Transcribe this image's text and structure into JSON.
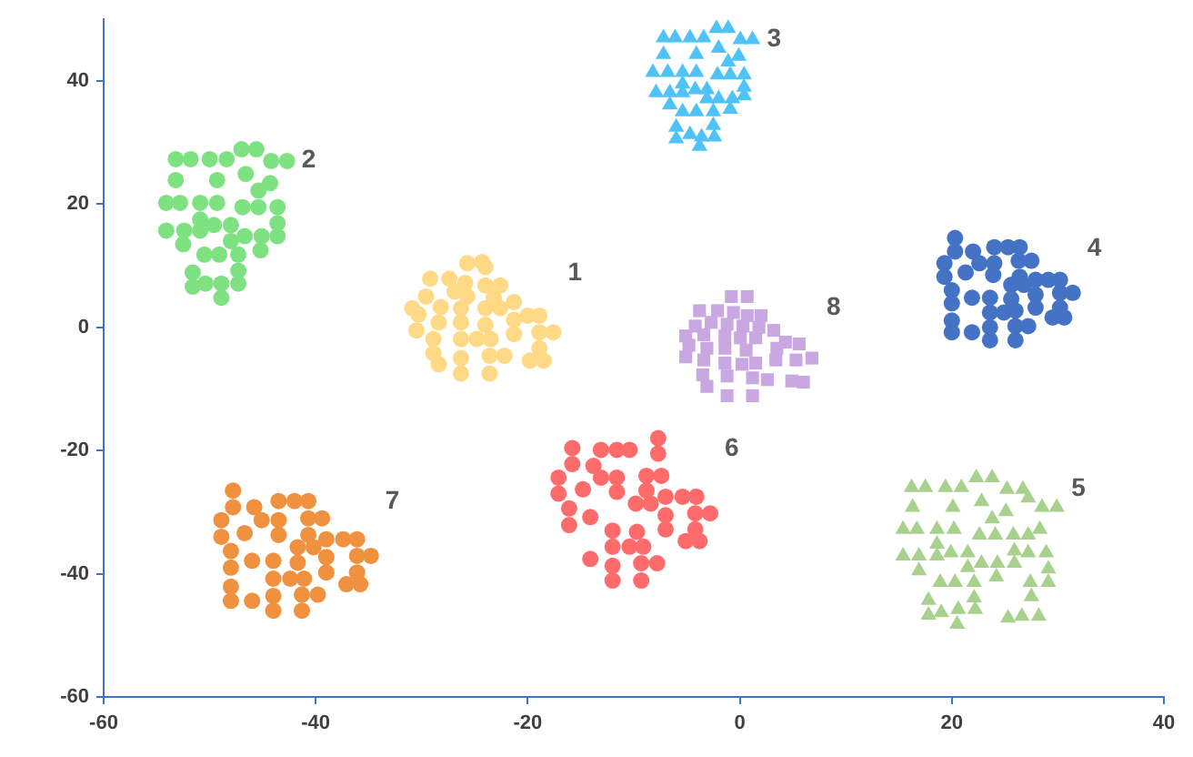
{
  "chart_data": {
    "type": "scatter",
    "xlim": [
      -60,
      40
    ],
    "xticks": [
      -60,
      -40,
      -20,
      0,
      20,
      40
    ],
    "ylim": [
      -60,
      50
    ],
    "yticks": [
      -60,
      -40,
      -20,
      0,
      20,
      40
    ],
    "series": [
      {
        "name": "1",
        "color": "#ffd986",
        "marker": "circle",
        "x": [
          -25.7,
          -24.3,
          -24.0,
          -29.2,
          -27.4,
          -25.9,
          -24.0,
          -22.6,
          -26.9,
          -25.7,
          -23.2,
          -29.6,
          -30.9,
          -28.2,
          -26.3,
          -24.0,
          -22.6,
          -21.3,
          -30.3,
          -28.4,
          -26.3,
          -24.0,
          -21.3,
          -20.0,
          -18.9,
          -30.5,
          -21.3,
          -18.9,
          -17.6,
          -28.9,
          -26.3,
          -24.8,
          -23.5,
          -28.9,
          -26.3,
          -23.6,
          -22.2,
          -18.9,
          -19.8,
          -18.5,
          -28.4,
          -26.3,
          -23.6
        ],
        "values": [
          10.4,
          10.6,
          9.8,
          7.9,
          7.9,
          7.2,
          6.8,
          6.8,
          5.8,
          5.0,
          4.8,
          5.0,
          3.1,
          3.3,
          3.1,
          3.1,
          3.1,
          4.1,
          2.1,
          0.8,
          0.8,
          0.4,
          1.2,
          1.9,
          1.9,
          -0.5,
          -1.1,
          -0.8,
          -0.8,
          -1.9,
          -1.9,
          -1.9,
          -1.9,
          -4.2,
          -5.0,
          -4.6,
          -4.6,
          -3.4,
          -5.4,
          -5.4,
          -6.0,
          -7.5,
          -7.5
        ]
      },
      {
        "name": "2",
        "color": "#7ee282",
        "marker": "circle",
        "x": [
          -53.2,
          -51.8,
          -50.0,
          -48.4,
          -47.0,
          -45.6,
          -44.2,
          -42.7,
          -53.2,
          -49.3,
          -46.6,
          -44.3,
          -45.4,
          -54.1,
          -52.8,
          -50.9,
          -49.3,
          -46.9,
          -45.4,
          -43.6,
          -50.9,
          -54.1,
          -52.4,
          -50.9,
          -49.6,
          -48.0,
          -46.7,
          -45.1,
          -43.6,
          -43.6,
          -48.0,
          -52.5,
          -45.2,
          -50.5,
          -49.1,
          -47.3,
          -51.6,
          -47.3,
          -51.6,
          -50.4,
          -48.9,
          -47.3,
          -48.9
        ],
        "values": [
          27.3,
          27.3,
          27.3,
          27.3,
          28.9,
          28.9,
          27.0,
          27.0,
          23.9,
          23.9,
          24.9,
          23.4,
          22.2,
          20.2,
          20.2,
          20.2,
          20.2,
          19.5,
          19.5,
          19.5,
          17.5,
          15.7,
          15.7,
          15.7,
          16.6,
          16.6,
          14.8,
          14.8,
          14.8,
          16.9,
          14.0,
          13.5,
          12.5,
          11.8,
          11.8,
          11.8,
          8.9,
          9.2,
          6.6,
          7.1,
          7.1,
          7.1,
          4.8
        ]
      },
      {
        "name": "3",
        "color": "#4fc3f7",
        "marker": "triangle",
        "x": [
          -7.2,
          -6.1,
          -4.7,
          -3.4,
          -2.2,
          -1.1,
          0.05,
          1.2,
          -2.0,
          -7.2,
          -4.1,
          -1.1,
          -0.1,
          -8.2,
          -6.8,
          -5.4,
          -4.1,
          -2.1,
          -0.9,
          0.4,
          0.4,
          -5.4,
          -7.9,
          -6.6,
          -5.4,
          -4.2,
          -3.1,
          -2.0,
          -0.7,
          0.4,
          -3.1,
          -6.6,
          -0.9,
          -5.4,
          -4.1,
          -2.5,
          -6.0,
          -4.7,
          -2.5,
          -6.0,
          -3.6,
          -2.4,
          -3.8
        ],
        "values": [
          47.0,
          47.0,
          47.0,
          47.0,
          48.5,
          48.5,
          46.7,
          46.7,
          45.3,
          44.3,
          44.3,
          43.1,
          44.0,
          41.4,
          41.4,
          41.4,
          41.4,
          41.0,
          41.0,
          41.0,
          39.0,
          39.5,
          38.1,
          38.1,
          38.1,
          38.6,
          38.6,
          37.1,
          37.1,
          37.6,
          37.1,
          36.1,
          35.4,
          35.0,
          35.0,
          35.0,
          32.5,
          31.3,
          32.8,
          30.6,
          30.9,
          30.9,
          29.4
        ]
      },
      {
        "name": "4",
        "color": "#4472c4",
        "marker": "circle",
        "x": [
          20.3,
          20.3,
          22.0,
          24.0,
          25.3,
          26.4,
          19.3,
          22.6,
          24.0,
          26.3,
          27.5,
          19.3,
          21.3,
          23.9,
          26.4,
          25.6,
          26.8,
          27.9,
          29.1,
          30.2,
          20.0,
          21.9,
          23.6,
          25.6,
          27.9,
          30.2,
          31.4,
          20.0,
          23.6,
          24.9,
          26.0,
          27.9,
          30.2,
          29.5,
          30.6,
          20.0,
          20.0,
          21.9,
          23.6,
          26.0,
          27.2,
          23.6,
          26.0
        ],
        "values": [
          14.5,
          12.3,
          12.3,
          13.0,
          13.0,
          13.0,
          10.4,
          10.4,
          10.4,
          10.8,
          10.8,
          8.2,
          8.9,
          8.5,
          8.2,
          6.9,
          6.9,
          7.7,
          7.7,
          7.7,
          6.0,
          4.8,
          4.8,
          4.6,
          5.3,
          5.6,
          5.6,
          3.9,
          2.4,
          2.4,
          2.7,
          3.2,
          3.2,
          1.6,
          1.6,
          1.1,
          -0.8,
          -0.8,
          0.0,
          0.2,
          0.2,
          -2.1,
          -2.1
        ]
      },
      {
        "name": "5",
        "color": "#a9d18e",
        "marker": "triangle",
        "x": [
          22.3,
          23.8,
          16.2,
          17.5,
          19.4,
          20.9,
          25.2,
          26.7,
          27.2,
          16.3,
          20.1,
          22.8,
          25.1,
          28.5,
          29.9,
          23.8,
          15.4,
          16.7,
          18.6,
          20.2,
          22.6,
          24.1,
          25.8,
          27.2,
          28.3,
          18.6,
          15.4,
          16.9,
          18.6,
          19.9,
          21.5,
          25.9,
          27.2,
          28.9,
          21.5,
          22.8,
          24.3,
          25.9,
          16.9,
          29.1,
          18.9,
          20.3,
          22.1,
          24.2,
          27.4,
          29.1,
          17.8,
          22.1,
          27.5,
          17.8,
          19.0,
          20.6,
          22.2,
          25.3,
          26.6,
          28.2,
          20.5
        ],
        "values": [
          -24.4,
          -24.4,
          -26.0,
          -26.0,
          -26.0,
          -26.0,
          -26.3,
          -26.3,
          -27.7,
          -29.2,
          -29.2,
          -28.3,
          -29.9,
          -29.2,
          -29.2,
          -31.1,
          -32.8,
          -32.8,
          -32.8,
          -32.8,
          -33.7,
          -33.7,
          -33.7,
          -33.7,
          -32.8,
          -35.2,
          -37.1,
          -37.1,
          -37.1,
          -36.6,
          -36.6,
          -36.3,
          -36.6,
          -36.6,
          -39.0,
          -38.3,
          -38.3,
          -38.3,
          -39.5,
          -39.2,
          -41.4,
          -41.4,
          -41.4,
          -40.5,
          -41.4,
          -41.4,
          -44.3,
          -43.9,
          -43.7,
          -46.7,
          -46.3,
          -45.8,
          -45.8,
          -47.2,
          -46.9,
          -46.9,
          -48.2
        ]
      },
      {
        "name": "6",
        "color": "#ff6b6b",
        "marker": "circle",
        "x": [
          -7.7,
          -15.8,
          -13.1,
          -11.6,
          -10.4,
          -7.7,
          -15.8,
          -13.8,
          -17.1,
          -13.1,
          -11.6,
          -8.8,
          -7.4,
          -17.1,
          -14.8,
          -11.6,
          -8.8,
          -9.8,
          -8.4,
          -7.0,
          -5.4,
          -4.1,
          -16.1,
          -7.0,
          -4.2,
          -2.8,
          -16.1,
          -14.1,
          -12.0,
          -9.7,
          -7.0,
          -4.2,
          -5.1,
          -3.8,
          -12.0,
          -10.4,
          -9.1,
          -14.1,
          -12.0,
          -9.3,
          -7.8,
          -12.0,
          -9.3
        ],
        "values": [
          -18.0,
          -19.6,
          -19.9,
          -19.9,
          -19.9,
          -20.5,
          -22.2,
          -22.5,
          -24.4,
          -24.4,
          -24.4,
          -24.1,
          -24.1,
          -27.0,
          -26.3,
          -26.7,
          -26.5,
          -28.6,
          -28.6,
          -27.5,
          -27.5,
          -27.5,
          -29.4,
          -30.5,
          -30.2,
          -30.2,
          -32.1,
          -30.8,
          -33.0,
          -33.2,
          -32.8,
          -32.8,
          -34.7,
          -34.7,
          -35.6,
          -35.6,
          -35.6,
          -37.6,
          -38.7,
          -38.3,
          -38.3,
          -41.1,
          -41.1
        ]
      },
      {
        "name": "7",
        "color": "#f0913f",
        "marker": "circle",
        "x": [
          -47.8,
          -47.8,
          -45.8,
          -43.5,
          -42.0,
          -40.7,
          -48.9,
          -45.1,
          -43.5,
          -40.7,
          -39.4,
          -48.9,
          -46.7,
          -43.5,
          -40.7,
          -39.0,
          -37.4,
          -36.1,
          -48.0,
          -41.7,
          -40.2,
          -36.1,
          -34.8,
          -48.0,
          -46.0,
          -44.0,
          -41.7,
          -39.0,
          -39.0,
          -36.1,
          -44.0,
          -42.4,
          -41.1,
          -37.1,
          -35.8,
          -48.0,
          -48.0,
          -46.0,
          -44.0,
          -41.3,
          -39.8,
          -44.0,
          -41.3
        ],
        "values": [
          -26.5,
          -29.2,
          -29.2,
          -28.2,
          -28.2,
          -28.2,
          -31.3,
          -31.3,
          -31.3,
          -31.0,
          -31.0,
          -34.0,
          -33.4,
          -33.7,
          -33.7,
          -34.4,
          -34.4,
          -34.4,
          -36.3,
          -35.7,
          -35.7,
          -37.1,
          -37.1,
          -39.0,
          -37.9,
          -37.9,
          -38.2,
          -37.3,
          -39.8,
          -39.8,
          -40.8,
          -40.8,
          -40.8,
          -41.7,
          -41.7,
          -42.1,
          -44.4,
          -44.4,
          -43.6,
          -43.4,
          -43.4,
          -46.0,
          -46.0
        ]
      },
      {
        "name": "8",
        "color": "#c9a8e2",
        "marker": "square",
        "x": [
          -0.8,
          0.7,
          -3.8,
          -2.1,
          -0.6,
          0.7,
          2.0,
          -4.2,
          -2.7,
          -1.2,
          0.3,
          1.8,
          3.2,
          -5.1,
          -3.4,
          -1.4,
          0.05,
          1.5,
          4.3,
          5.6,
          -4.8,
          -3.1,
          -1.4,
          0.6,
          3.5,
          -5.1,
          -3.4,
          -1.4,
          0.2,
          1.5,
          3.4,
          5.3,
          6.8,
          -3.5,
          -1.2,
          1.2,
          2.6,
          4.9,
          6.0,
          -3.1,
          -1.2,
          1.2
        ],
        "values": [
          5.0,
          5.0,
          2.7,
          2.7,
          2.4,
          1.9,
          1.9,
          0.2,
          0.8,
          0.5,
          0.2,
          0.0,
          -0.5,
          -1.4,
          -1.2,
          -1.4,
          -1.7,
          -1.7,
          -2.4,
          -2.7,
          -2.9,
          -3.4,
          -3.4,
          -3.7,
          -3.4,
          -4.8,
          -5.3,
          -5.8,
          -6.0,
          -5.8,
          -5.3,
          -5.3,
          -5.0,
          -7.7,
          -7.9,
          -8.2,
          -8.5,
          -8.7,
          -8.9,
          -9.6,
          -11.1,
          -11.1
        ]
      }
    ]
  }
}
